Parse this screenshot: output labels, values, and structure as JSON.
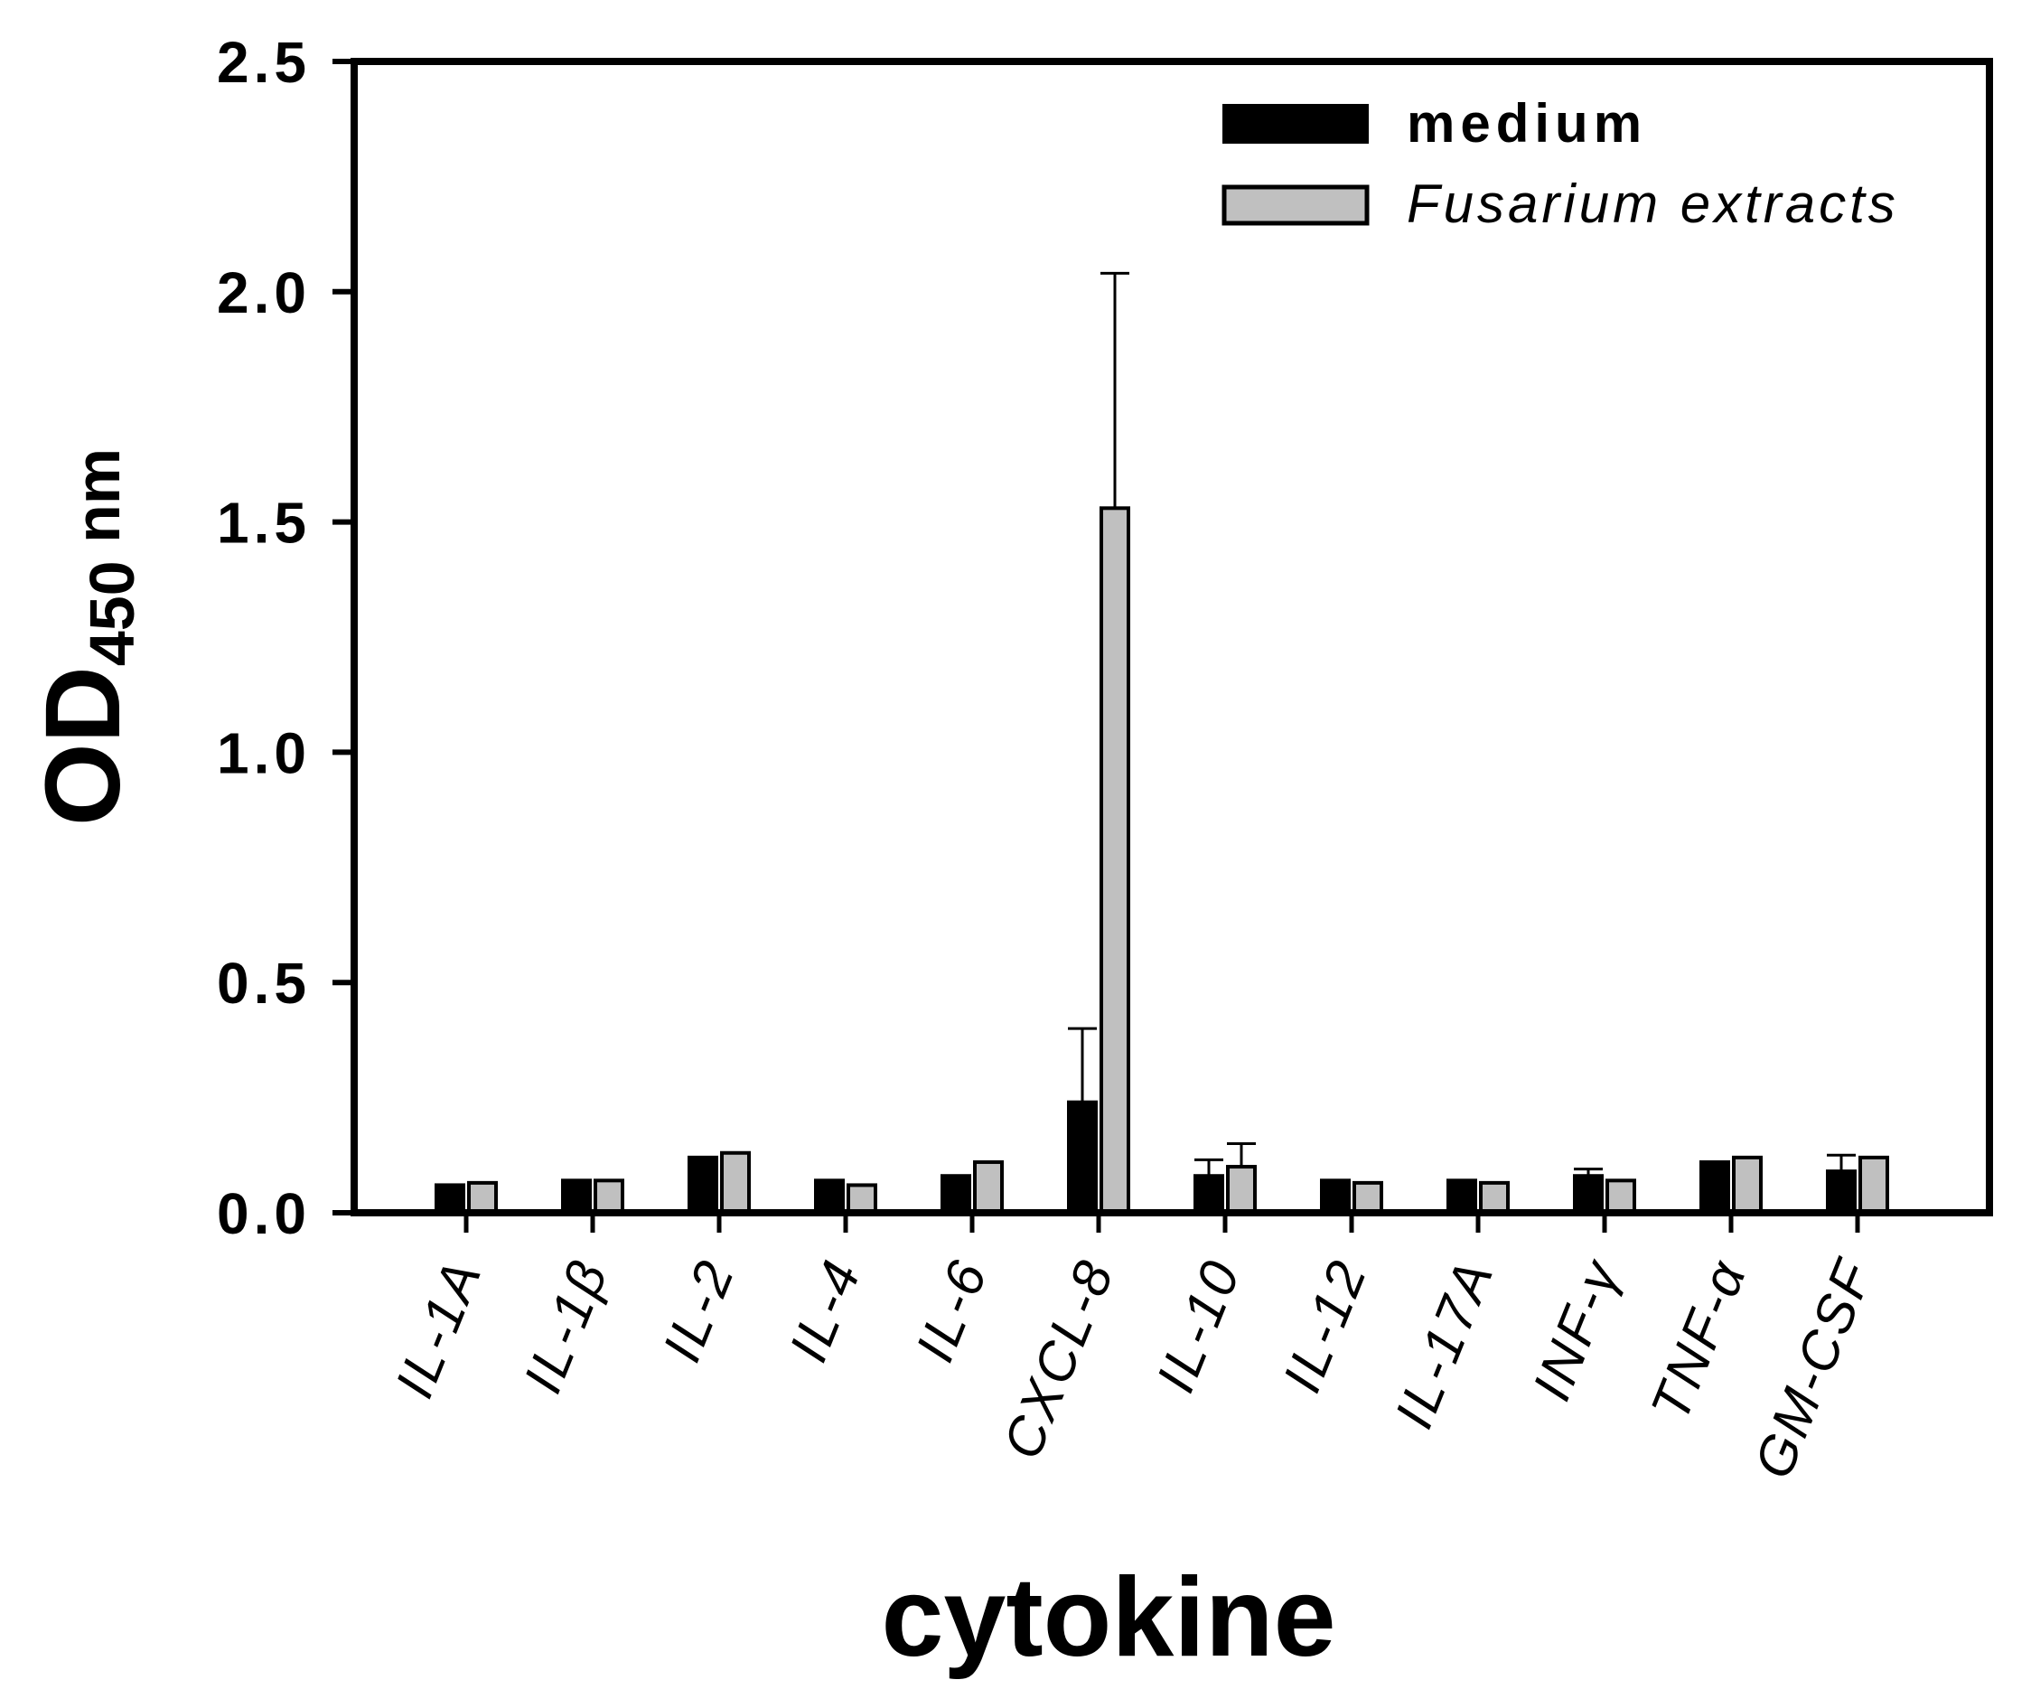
{
  "chart_data": {
    "type": "bar",
    "ylabel": "OD450 nm",
    "ylabel_main": "OD",
    "ylabel_sub": "450",
    "ylabel_unit": " nm",
    "xlabel": "cytokine",
    "ylim": [
      0,
      2.5
    ],
    "yticks": [
      "0.0",
      "0.5",
      "1.0",
      "1.5",
      "2.0",
      "2.5"
    ],
    "ytick_values": [
      0,
      0.5,
      1.0,
      1.5,
      2.0,
      2.5
    ],
    "grid": false,
    "legend_position": "top-right",
    "categories": [
      "IL-1A",
      "IL-1β",
      "IL-2",
      "IL-4",
      "IL-6",
      "CXCL-8",
      "IL-10",
      "IL-12",
      "IL-17A",
      "INF-γ",
      "TNF-α",
      "GM-CSF"
    ],
    "series": [
      {
        "name": "medium",
        "color": "#000000",
        "values": [
          0.06,
          0.07,
          0.12,
          0.07,
          0.08,
          0.24,
          0.08,
          0.07,
          0.07,
          0.08,
          0.11,
          0.09
        ],
        "errors": [
          0.0,
          0.0,
          0.0,
          0.0,
          0.0,
          0.16,
          0.035,
          0.0,
          0.0,
          0.015,
          0.0,
          0.035
        ]
      },
      {
        "name": "Fusarium extracts",
        "color": "#c0c0c0",
        "values": [
          0.065,
          0.07,
          0.13,
          0.06,
          0.11,
          1.53,
          0.1,
          0.065,
          0.065,
          0.07,
          0.12,
          0.12
        ],
        "errors": [
          0.0,
          0.0,
          0.0,
          0.0,
          0.0,
          0.51,
          0.05,
          0.0,
          0.0,
          0.0,
          0.0,
          0.0
        ]
      }
    ]
  }
}
